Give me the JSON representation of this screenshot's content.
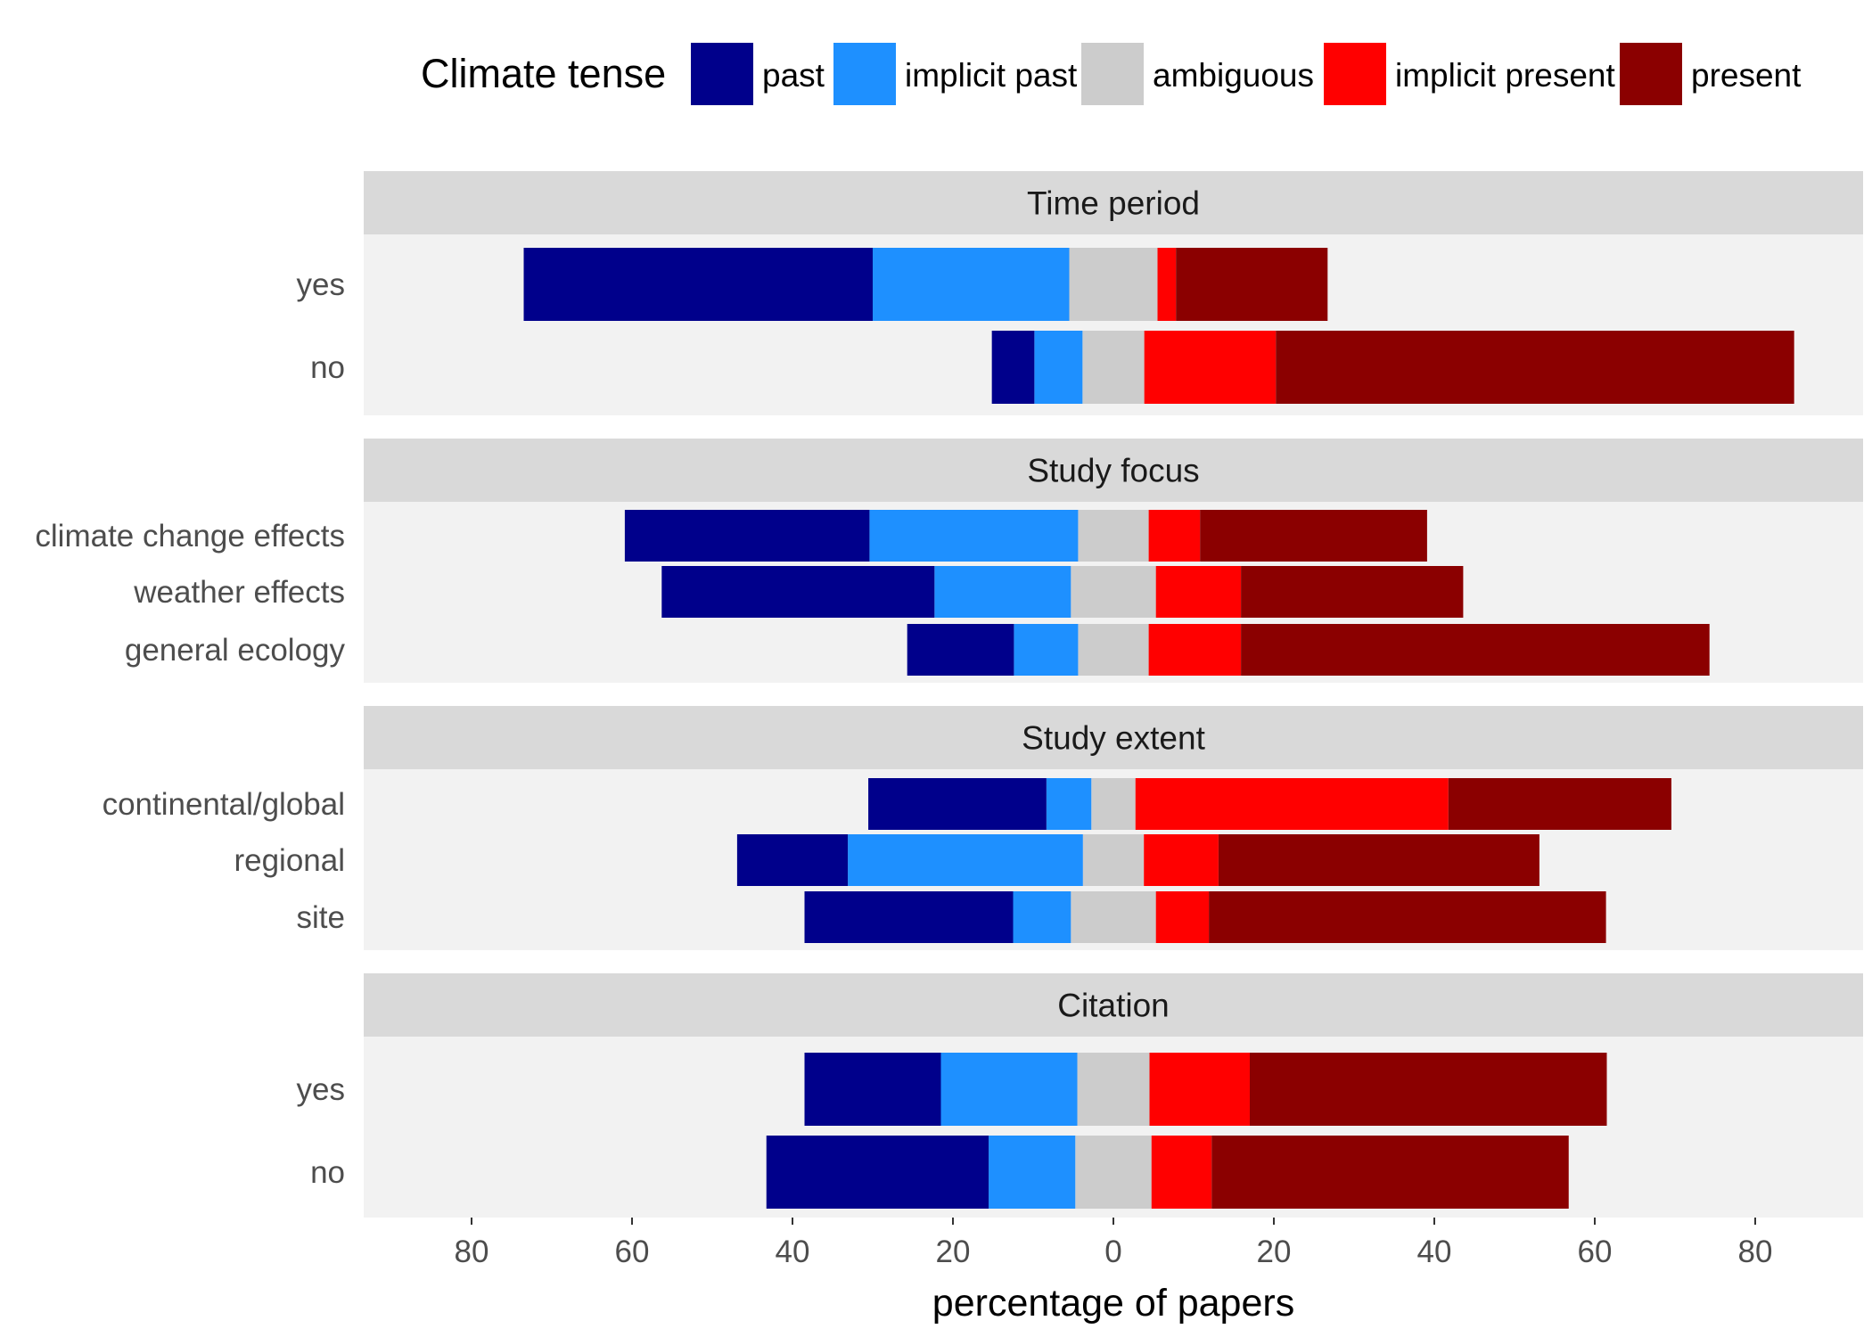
{
  "chart_data": {
    "type": "bar",
    "orientation": "horizontal",
    "stacking": "diverging",
    "xlabel": "percentage of papers",
    "xlim": [
      -92,
      92
    ],
    "x_ticks": [
      -80,
      -60,
      -40,
      -20,
      0,
      20,
      40,
      60,
      80
    ],
    "x_tick_labels": [
      "80",
      "60",
      "40",
      "20",
      "0",
      "20",
      "40",
      "60",
      "80"
    ],
    "legend": {
      "title": "Climate tense",
      "position": "top",
      "entries": [
        {
          "name": "past",
          "color": "#00008B"
        },
        {
          "name": "implicit past",
          "color": "#1E90FF"
        },
        {
          "name": "ambiguous",
          "color": "#CCCCCC"
        },
        {
          "name": "implicit present",
          "color": "#FF0000"
        },
        {
          "name": "present",
          "color": "#8B0000"
        }
      ]
    },
    "panels": [
      {
        "title": "Time period",
        "rows": [
          {
            "label": "yes",
            "past": 43.5,
            "implicit_past": 24.5,
            "ambiguous": 11,
            "implicit_present": 2.3,
            "present": 18.9
          },
          {
            "label": "no",
            "past": 5.3,
            "implicit_past": 6,
            "ambiguous": 7.7,
            "implicit_present": 16.4,
            "present": 64.6
          }
        ]
      },
      {
        "title": "Study focus",
        "rows": [
          {
            "label": "climate change effects",
            "past": 30.5,
            "implicit_past": 26,
            "ambiguous": 8.8,
            "implicit_present": 6.4,
            "present": 28.3
          },
          {
            "label": "weather effects",
            "past": 34,
            "implicit_past": 17,
            "ambiguous": 10.6,
            "implicit_present": 10.6,
            "present": 27.7
          },
          {
            "label": "general ecology",
            "past": 13.3,
            "implicit_past": 8,
            "ambiguous": 8.8,
            "implicit_present": 11.5,
            "present": 58.4
          }
        ]
      },
      {
        "title": "Study extent",
        "rows": [
          {
            "label": "continental/global",
            "past": 22.2,
            "implicit_past": 5.6,
            "ambiguous": 5.5,
            "implicit_present": 39,
            "present": 27.8
          },
          {
            "label": "regional",
            "past": 13.8,
            "implicit_past": 29.3,
            "ambiguous": 7.6,
            "implicit_present": 9.3,
            "present": 40
          },
          {
            "label": "site",
            "past": 26,
            "implicit_past": 7.2,
            "ambiguous": 10.6,
            "implicit_present": 6.6,
            "present": 49.5
          }
        ]
      },
      {
        "title": "Citation",
        "rows": [
          {
            "label": "yes",
            "past": 17,
            "implicit_past": 17,
            "ambiguous": 9,
            "implicit_present": 12.5,
            "present": 44.5
          },
          {
            "label": "no",
            "past": 27.7,
            "implicit_past": 10.8,
            "ambiguous": 9.5,
            "implicit_present": 7.5,
            "present": 44.5
          }
        ]
      }
    ]
  }
}
